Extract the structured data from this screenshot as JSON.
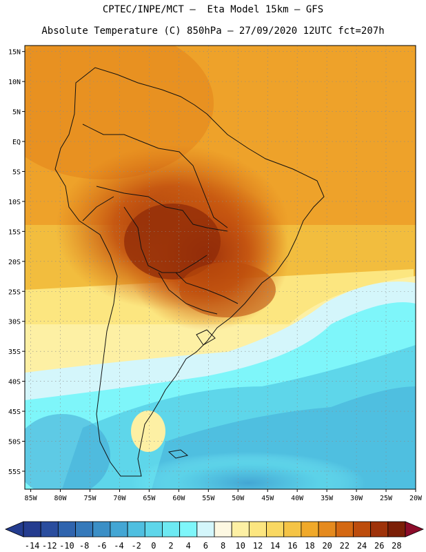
{
  "header": {
    "line1": "CPTEC/INPE/MCT –  Eta Model 15km – GFS",
    "line2": "Absolute Temperature (C) 850hPa – 27/09/2020 12UTC fct=207h"
  },
  "axes": {
    "lat_labels": [
      "15N",
      "10N",
      "5N",
      "EQ",
      "5S",
      "10S",
      "15S",
      "20S",
      "25S",
      "30S",
      "35S",
      "40S",
      "45S",
      "50S",
      "55S"
    ],
    "lon_labels": [
      "85W",
      "80W",
      "75W",
      "70W",
      "65W",
      "60W",
      "55W",
      "50W",
      "45W",
      "40W",
      "35W",
      "30W",
      "25W",
      "20W"
    ],
    "lat_range": [
      -58,
      16
    ],
    "lon_range": [
      -86,
      -20
    ]
  },
  "colorbar": {
    "labels": [
      "-14",
      "-12",
      "-10",
      "-8",
      "-6",
      "-4",
      "-2",
      "0",
      "2",
      "4",
      "6",
      "8",
      "10",
      "12",
      "14",
      "16",
      "18",
      "20",
      "22",
      "24",
      "26",
      "28"
    ],
    "colors": [
      "#243c8f",
      "#2a4d9e",
      "#2f64ae",
      "#3579ba",
      "#3b8fc6",
      "#43a6d4",
      "#4fbfe0",
      "#5ed6ea",
      "#6de9f2",
      "#7ef6fa",
      "#d4f6fb",
      "#fdf8e2",
      "#fdf0a4",
      "#fce680",
      "#f9d862",
      "#f5c446",
      "#f0a92a",
      "#e58a1e",
      "#d46812",
      "#bd4c0c",
      "#9e3209",
      "#7b1f07",
      "#8c0c2a"
    ]
  }
}
